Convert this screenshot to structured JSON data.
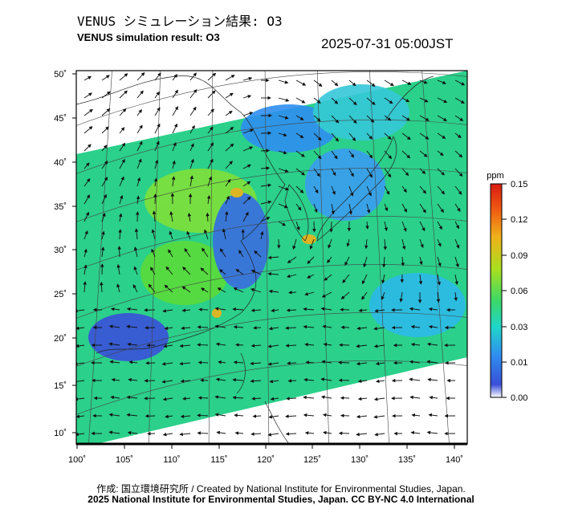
{
  "header": {
    "title_jp": "VENUS シミュレーション結果: O3",
    "title_en": "VENUS simulation result: O3",
    "timestamp": "2025-07-31 05:00JST"
  },
  "map": {
    "lat_ticks": [
      "50˚",
      "45˚",
      "40˚",
      "35˚",
      "30˚",
      "25˚",
      "20˚",
      "15˚",
      "10˚"
    ],
    "lon_ticks": [
      "100˚",
      "105˚",
      "110˚",
      "115˚",
      "120˚",
      "125˚",
      "130˚",
      "135˚",
      "140˚"
    ],
    "lat_range": [
      9,
      51
    ],
    "lon_range": [
      100,
      142
    ]
  },
  "colorbar": {
    "unit": "ppm",
    "labels": [
      "0.15",
      "0.12",
      "0.09",
      "0.06",
      "0.03",
      "0.01",
      "0.00"
    ],
    "colors": [
      "#ffffff",
      "#3a4fd8",
      "#2f8ff0",
      "#20d6c8",
      "#3ad86a",
      "#a8e01e",
      "#f0b21a",
      "#f05a12",
      "#d81a10"
    ]
  },
  "footer": {
    "credit_line1": "作成: 国立環境研究所 / Created by National Institute for Environmental Studies, Japan.",
    "credit_line2": "2025 National Institute for Environmental Studies, Japan. CC BY-NC 4.0 International"
  }
}
